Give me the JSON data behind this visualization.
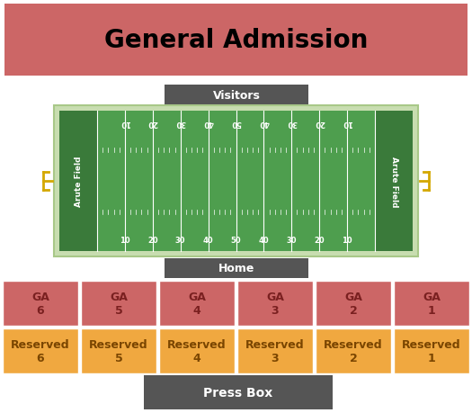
{
  "title": "General Admission",
  "title_color": "#000000",
  "title_bg_color": "#cc6666",
  "visitors_label": "Visitors",
  "home_label": "Home",
  "press_box_label": "Press Box",
  "field_label": "Arute Field",
  "field_bg_color": "#c8ddb0",
  "field_dark_green": "#3a7a3a",
  "field_mid_green": "#4e9e4e",
  "field_line_color": "#ffffff",
  "label_bg_color": "#555555",
  "label_text_color": "#ffffff",
  "ga_color": "#cc6666",
  "ga_text_color": "#7a2020",
  "reserved_color": "#f0a840",
  "reserved_text_color": "#7a4500",
  "ga_sections": [
    "GA\n6",
    "GA\n5",
    "GA\n4",
    "GA\n3",
    "GA\n2",
    "GA\n1"
  ],
  "reserved_sections": [
    "Reserved\n6",
    "Reserved\n5",
    "Reserved\n4",
    "Reserved\n3",
    "Reserved\n2",
    "Reserved\n1"
  ],
  "yard_labels": [
    "10",
    "20",
    "30",
    "40",
    "50",
    "40",
    "30",
    "20",
    "10"
  ],
  "bg_color": "#ffffff",
  "goal_post_color": "#d4a800"
}
